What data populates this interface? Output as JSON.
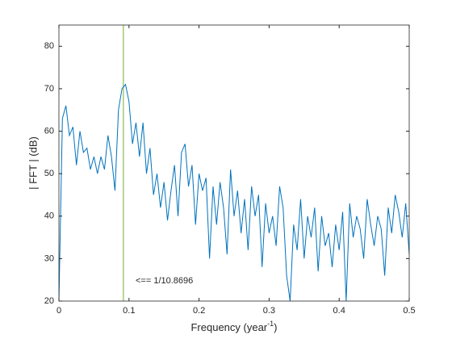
{
  "chart_data": {
    "type": "line",
    "xlabel": [
      "Frequency  (year",
      "-1",
      ")"
    ],
    "ylabel": "| FFT | (dB)",
    "annotation": "<== 1/10.8696",
    "vline": 0.092,
    "vline_color": "#77ac30",
    "xlim": [
      0,
      0.5
    ],
    "ylim": [
      20,
      85
    ],
    "xticks": [
      0,
      0.1,
      0.2,
      0.3,
      0.4,
      0.5
    ],
    "yticks": [
      20,
      30,
      40,
      50,
      60,
      70,
      80
    ],
    "grid": false,
    "series": [
      {
        "name": "FFT",
        "color": "#0072bd",
        "x": [
          0,
          0.005,
          0.01,
          0.015,
          0.02,
          0.025,
          0.03,
          0.035,
          0.04,
          0.045,
          0.05,
          0.055,
          0.06,
          0.065,
          0.07,
          0.075,
          0.08,
          0.085,
          0.09,
          0.095,
          0.1,
          0.105,
          0.11,
          0.115,
          0.12,
          0.125,
          0.13,
          0.135,
          0.14,
          0.145,
          0.15,
          0.155,
          0.16,
          0.165,
          0.17,
          0.175,
          0.18,
          0.185,
          0.19,
          0.195,
          0.2,
          0.205,
          0.21,
          0.215,
          0.22,
          0.225,
          0.23,
          0.235,
          0.24,
          0.245,
          0.25,
          0.255,
          0.26,
          0.265,
          0.27,
          0.275,
          0.28,
          0.285,
          0.29,
          0.295,
          0.3,
          0.305,
          0.31,
          0.315,
          0.32,
          0.325,
          0.33,
          0.335,
          0.34,
          0.345,
          0.35,
          0.355,
          0.36,
          0.365,
          0.37,
          0.375,
          0.38,
          0.385,
          0.39,
          0.395,
          0.4,
          0.405,
          0.41,
          0.415,
          0.42,
          0.425,
          0.43,
          0.435,
          0.44,
          0.445,
          0.45,
          0.455,
          0.46,
          0.465,
          0.47,
          0.475,
          0.48,
          0.485,
          0.49,
          0.495,
          0.5
        ],
        "values": [
          20,
          63,
          66,
          59,
          61,
          52,
          60,
          55,
          56,
          51,
          54,
          50,
          54,
          51,
          59,
          54,
          46,
          65,
          70,
          71,
          67,
          57,
          62,
          54,
          62,
          50,
          56,
          45,
          50,
          42,
          48,
          39,
          46,
          52,
          40,
          55,
          57,
          47,
          52,
          38,
          50,
          46,
          49,
          30,
          47,
          38,
          48,
          42,
          31,
          51,
          40,
          46,
          36,
          44,
          32,
          47,
          40,
          45,
          28,
          43,
          36,
          40,
          33,
          47,
          42,
          26,
          20,
          38,
          32,
          44,
          30,
          40,
          35,
          42,
          27,
          40,
          33,
          36,
          28,
          38,
          32,
          41,
          20,
          43,
          35,
          40,
          37,
          30,
          44,
          38,
          33,
          40,
          37,
          26,
          42,
          36,
          45,
          41,
          35,
          43,
          31
        ]
      }
    ]
  }
}
